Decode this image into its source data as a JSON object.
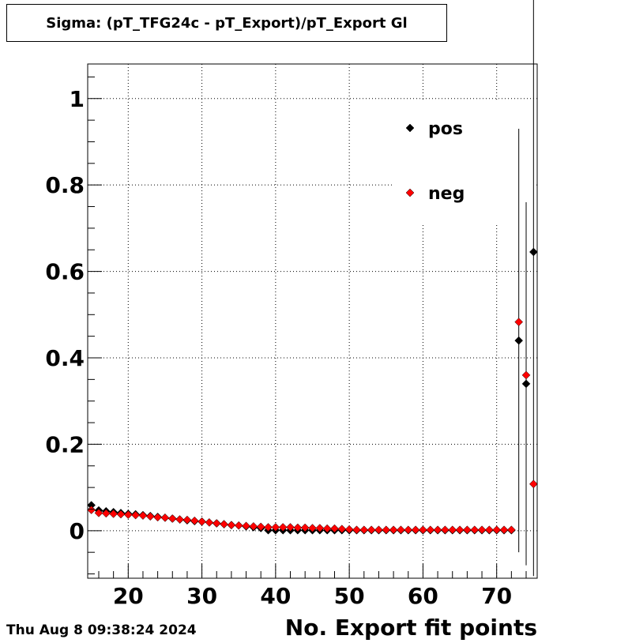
{
  "header": {
    "title": "Sigma: (pT_TFG24c - pT_Export)/pT_Export Gl"
  },
  "footer": {
    "datestamp": "Thu Aug  8 09:38:24 2024"
  },
  "chart_data": {
    "type": "scatter",
    "title": "Sigma: (pT_TFG24c - pT_Export)/pT_Export Gl",
    "xlabel": "No. Export fit points",
    "ylabel": "",
    "xlim": [
      14.5,
      75.5
    ],
    "ylim": [
      -0.11,
      1.08
    ],
    "x_ticks": [
      20,
      30,
      40,
      50,
      60,
      70
    ],
    "y_ticks": [
      0,
      0.2,
      0.4,
      0.6,
      0.8,
      1
    ],
    "x_tick_labels": [
      "20",
      "30",
      "40",
      "50",
      "60",
      "70"
    ],
    "y_tick_labels": [
      "0",
      "0.2",
      "0.4",
      "0.6",
      "0.8",
      "1"
    ],
    "grid": true,
    "legend": {
      "position": "top-right",
      "entries": [
        "pos",
        "neg"
      ]
    },
    "series": [
      {
        "name": "pos",
        "color": "#000000",
        "x": [
          15,
          16,
          17,
          18,
          19,
          20,
          21,
          22,
          23,
          24,
          25,
          26,
          27,
          28,
          29,
          30,
          31,
          32,
          33,
          34,
          35,
          36,
          37,
          38,
          39,
          40,
          41,
          42,
          43,
          44,
          45,
          46,
          47,
          48,
          49,
          50,
          51,
          52,
          53,
          54,
          55,
          56,
          57,
          58,
          59,
          60,
          61,
          62,
          63,
          64,
          65,
          66,
          67,
          68,
          69,
          70,
          71,
          72,
          73,
          74,
          75
        ],
        "y": [
          0.059,
          0.047,
          0.045,
          0.043,
          0.041,
          0.039,
          0.038,
          0.036,
          0.034,
          0.032,
          0.03,
          0.028,
          0.026,
          0.024,
          0.022,
          0.021,
          0.019,
          0.017,
          0.015,
          0.013,
          0.012,
          0.01,
          0.008,
          0.006,
          0.001,
          0.001,
          0.001,
          0.001,
          0.001,
          0.001,
          0.001,
          0.001,
          0.001,
          0.001,
          0.001,
          0.001,
          0.001,
          0.001,
          0.001,
          0.001,
          0.001,
          0.001,
          0.001,
          0.001,
          0.001,
          0.001,
          0.001,
          0.001,
          0.001,
          0.001,
          0.001,
          0.001,
          0.001,
          0.001,
          0.001,
          0.001,
          0.001,
          0.001,
          0.44,
          0.34,
          0.645
        ],
        "err": [
          0,
          0,
          0,
          0,
          0,
          0,
          0,
          0,
          0,
          0,
          0,
          0,
          0,
          0,
          0,
          0,
          0,
          0,
          0,
          0,
          0,
          0,
          0,
          0,
          0,
          0,
          0,
          0,
          0,
          0,
          0,
          0,
          0,
          0,
          0,
          0,
          0,
          0,
          0,
          0,
          0,
          0,
          0,
          0,
          0,
          0,
          0,
          0,
          0,
          0,
          0,
          0,
          0,
          0,
          0,
          0,
          0,
          0,
          0.49,
          0.42,
          0.75
        ]
      },
      {
        "name": "neg",
        "color": "#ff0000",
        "x": [
          15,
          16,
          17,
          18,
          19,
          20,
          21,
          22,
          23,
          24,
          25,
          26,
          27,
          28,
          29,
          30,
          31,
          32,
          33,
          34,
          35,
          36,
          37,
          38,
          39,
          40,
          41,
          42,
          43,
          44,
          45,
          46,
          47,
          48,
          49,
          50,
          51,
          52,
          53,
          54,
          55,
          56,
          57,
          58,
          59,
          60,
          61,
          62,
          63,
          64,
          65,
          66,
          67,
          68,
          69,
          70,
          71,
          72,
          73,
          74,
          75
        ],
        "y": [
          0.048,
          0.041,
          0.04,
          0.039,
          0.038,
          0.037,
          0.036,
          0.035,
          0.033,
          0.031,
          0.03,
          0.028,
          0.026,
          0.025,
          0.023,
          0.021,
          0.019,
          0.017,
          0.015,
          0.013,
          0.012,
          0.011,
          0.01,
          0.009,
          0.008,
          0.008,
          0.008,
          0.008,
          0.007,
          0.007,
          0.006,
          0.006,
          0.005,
          0.005,
          0.004,
          0.003,
          0.002,
          0.002,
          0.002,
          0.002,
          0.002,
          0.002,
          0.002,
          0.002,
          0.002,
          0.002,
          0.002,
          0.002,
          0.002,
          0.002,
          0.002,
          0.002,
          0.002,
          0.002,
          0.002,
          0.002,
          0.002,
          0.002,
          0.483,
          0.36,
          0.108
        ],
        "err": [
          0,
          0,
          0,
          0,
          0,
          0,
          0,
          0,
          0,
          0,
          0,
          0,
          0,
          0,
          0,
          0,
          0,
          0,
          0,
          0,
          0,
          0,
          0,
          0,
          0,
          0,
          0,
          0,
          0,
          0,
          0,
          0,
          0,
          0,
          0,
          0,
          0,
          0,
          0,
          0,
          0,
          0,
          0,
          0,
          0,
          0,
          0,
          0,
          0,
          0,
          0,
          0,
          0,
          0,
          0,
          0,
          0,
          0,
          0,
          0,
          0
        ]
      }
    ]
  }
}
